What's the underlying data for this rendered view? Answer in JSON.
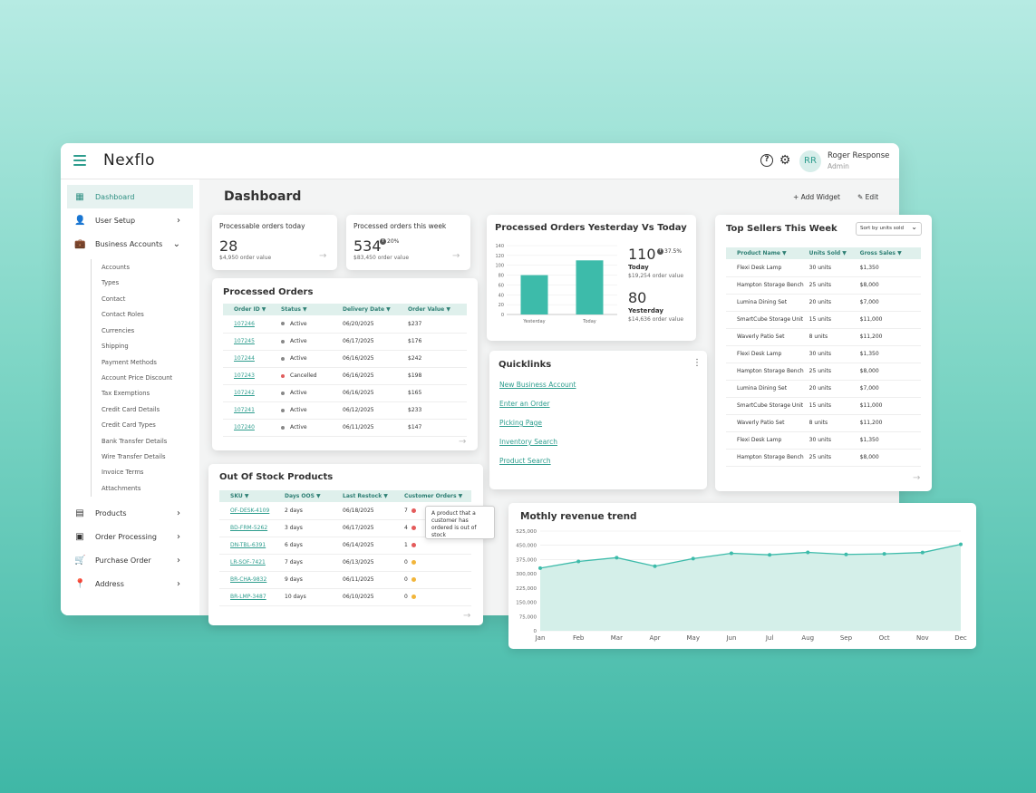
{
  "app": {
    "logo": "Nexflo",
    "user_name": "Roger Response",
    "user_role": "Admin",
    "avatar": "RR"
  },
  "sidebar": {
    "items": [
      {
        "label": "Dashboard",
        "icon": "dashboard-icon"
      },
      {
        "label": "User Setup",
        "icon": "user-icon"
      },
      {
        "label": "Business Accounts",
        "icon": "briefcase-icon"
      },
      {
        "label": "Products",
        "icon": "calendar-icon"
      },
      {
        "label": "Order Processing",
        "icon": "clipboard-icon"
      },
      {
        "label": "Purchase Order",
        "icon": "cart-icon"
      },
      {
        "label": "Address",
        "icon": "location-icon"
      }
    ],
    "sub_items": [
      "Accounts",
      "Types",
      "Contact",
      "Contact Roles",
      "Currencies",
      "Shipping",
      "Payment Methods",
      "Account Price Discount",
      "Tax Exemptions",
      "Credit Card Details",
      "Credit Card Types",
      "Bank Transfer Details",
      "Wire Transfer Details",
      "Invoice Terms",
      "Attachments"
    ]
  },
  "header": {
    "title": "Dashboard",
    "add_widget": "+ Add Widget",
    "edit": "✎ Edit"
  },
  "kpi_today": {
    "title": "Processable orders today",
    "value": "28",
    "note": "$4,950 order value"
  },
  "kpi_week": {
    "title": "Processed orders this week",
    "value": "534",
    "badge": "20%",
    "note": "$83,450 order value"
  },
  "processed_orders": {
    "title": "Processed Orders",
    "columns": [
      "Order ID ▼",
      "Status ▼",
      "Delivery Date ▼",
      "Order Value ▼"
    ],
    "rows": [
      [
        "107246",
        "Active",
        "06/20/2025",
        "$237"
      ],
      [
        "107245",
        "Active",
        "06/17/2025",
        "$176"
      ],
      [
        "107244",
        "Active",
        "06/16/2025",
        "$242"
      ],
      [
        "107243",
        "Cancelled",
        "06/16/2025",
        "$198"
      ],
      [
        "107242",
        "Active",
        "06/16/2025",
        "$165"
      ],
      [
        "107241",
        "Active",
        "06/12/2025",
        "$233"
      ],
      [
        "107240",
        "Active",
        "06/11/2025",
        "$147"
      ]
    ],
    "status_colors": {
      "Active": "#888888",
      "Cancelled": "#e05d5d"
    }
  },
  "yesterday_vs_today": {
    "title": "Processed Orders Yesterday Vs Today",
    "today_value": "110",
    "today_badge": "37.5%",
    "today_label": "Today",
    "today_note": "$19,254 order value",
    "yesterday_value": "80",
    "yesterday_label": "Yesterday",
    "yesterday_note": "$14,636 order value"
  },
  "top_sellers": {
    "title": "Top Sellers This Week",
    "sort": "Sort by units sold",
    "columns": [
      "Product Name ▼",
      "Units Sold ▼",
      "Gross Sales ▼"
    ],
    "rows": [
      [
        "Flexi Desk Lamp",
        "30 units",
        "$1,350"
      ],
      [
        "Hampton Storage Bench",
        "25 units",
        "$8,000"
      ],
      [
        "Lumina Dining Set",
        "20 units",
        "$7,000"
      ],
      [
        "SmartCube Storage Unit",
        "15 units",
        "$11,000"
      ],
      [
        "Waverly Patio Set",
        "8 units",
        "$11,200"
      ],
      [
        "Flexi Desk Lamp",
        "30 units",
        "$1,350"
      ],
      [
        "Hampton Storage Bench",
        "25 units",
        "$8,000"
      ],
      [
        "Lumina Dining Set",
        "20 units",
        "$7,000"
      ],
      [
        "SmartCube Storage Unit",
        "15 units",
        "$11,000"
      ],
      [
        "Waverly Patio Set",
        "8 units",
        "$11,200"
      ],
      [
        "Flexi Desk Lamp",
        "30 units",
        "$1,350"
      ],
      [
        "Hampton Storage Bench",
        "25 units",
        "$8,000"
      ]
    ]
  },
  "quicklinks": {
    "title": "Quicklinks",
    "links": [
      "New Business Account",
      "Enter an Order",
      "Picking Page",
      "Inventory Search",
      "Product Search"
    ]
  },
  "out_of_stock": {
    "title": "Out Of Stock Products",
    "columns": [
      "SKU ▼",
      "Days OOS ▼",
      "Last Restock ▼",
      "Customer Orders ▼"
    ],
    "rows": [
      [
        "OF-DESK-4109",
        "2 days",
        "06/18/2025",
        "7"
      ],
      [
        "BD-FRM-5262",
        "3 days",
        "06/17/2025",
        "4"
      ],
      [
        "DN-TBL-6391",
        "6 days",
        "06/14/2025",
        "1"
      ],
      [
        "LR-SOF-7421",
        "7 days",
        "06/13/2025",
        "0"
      ],
      [
        "BR-CHA-9832",
        "9 days",
        "06/11/2025",
        "0"
      ],
      [
        "BR-LMP-3487",
        "10 days",
        "06/10/2025",
        "0"
      ]
    ],
    "dot_colors": {
      "red": "#e45b5b",
      "yellow": "#f2b53a"
    },
    "tooltip": "A product that a customer has ordered is out of stock"
  },
  "colors": {
    "accent": "#3dbbaa",
    "accent_dark": "#2e9d8e"
  },
  "chart_data": [
    {
      "type": "bar",
      "categories": [
        "Yesterday",
        "Today"
      ],
      "values": [
        80,
        110
      ],
      "ylim": [
        0,
        140
      ],
      "yticks": [
        0,
        20,
        40,
        60,
        80,
        100,
        120,
        140
      ]
    },
    {
      "type": "area",
      "title": "Mothly revenue trend",
      "categories": [
        "Jan",
        "Feb",
        "Mar",
        "Apr",
        "May",
        "Jun",
        "Jul",
        "Aug",
        "Sep",
        "Oct",
        "Nov",
        "Dec"
      ],
      "values": [
        330000,
        365000,
        385000,
        340000,
        380000,
        408000,
        400000,
        413000,
        402000,
        405000,
        412000,
        455000
      ],
      "ylim": [
        0,
        525000
      ],
      "yticks": [
        "0",
        "75,000",
        "150,000",
        "225,000",
        "300,000",
        "375,000",
        "450,000",
        "525,000"
      ]
    }
  ]
}
